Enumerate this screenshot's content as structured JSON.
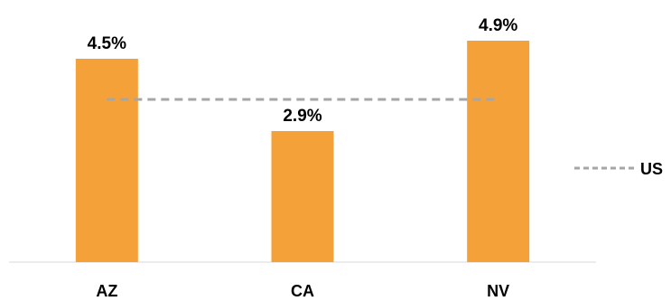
{
  "chart_data": {
    "type": "bar",
    "categories": [
      "AZ",
      "CA",
      "NV"
    ],
    "series": [
      {
        "values": [
          4.5,
          2.9,
          4.9
        ],
        "color": "#F5A13A"
      }
    ],
    "data_labels": [
      "4.5%",
      "2.9%",
      "4.9%"
    ],
    "reference_line": {
      "name": "US",
      "value": 3.6,
      "color": "#A6A6A6",
      "style": "dashed"
    },
    "ylim": [
      0,
      5.6
    ],
    "grid": false,
    "legend": {
      "position": "right",
      "entries": [
        "US"
      ]
    },
    "title": "",
    "xlabel": "",
    "ylabel": ""
  }
}
